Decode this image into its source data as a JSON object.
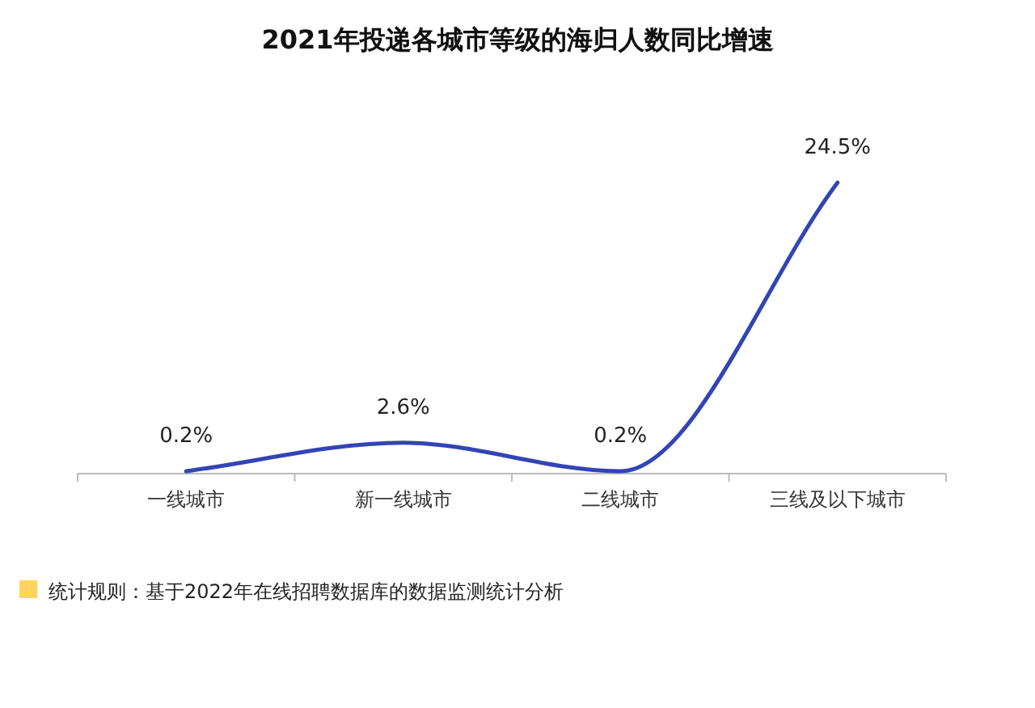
{
  "chart_data": {
    "type": "line",
    "title": "2021年投递各城市等级的海归人数同比增速",
    "categories": [
      "一线城市",
      "新一线城市",
      "二线城市",
      "三线及以下城市"
    ],
    "values": [
      0.2,
      2.6,
      0.2,
      24.5
    ],
    "value_labels": [
      "0.2%",
      "2.6%",
      "0.2%",
      "24.5%"
    ],
    "color": "#3344b5",
    "marker": "none",
    "line_style": "solid",
    "annotations": [
      "统计规则：基于2022年在线招聘数据库的数据监测统计分析"
    ]
  }
}
